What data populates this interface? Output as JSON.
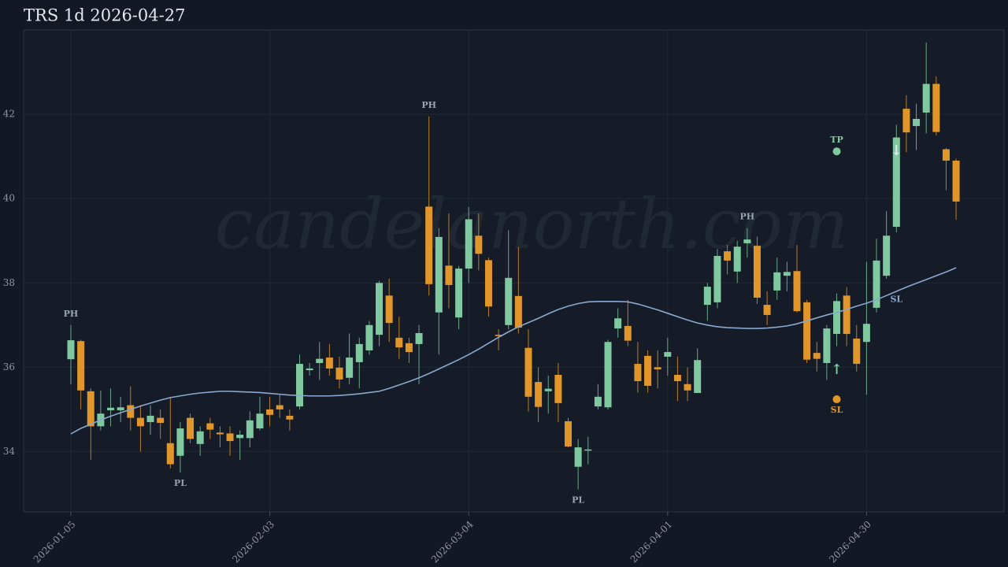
{
  "chart_data": {
    "type": "candlestick",
    "title": "TRS 1d 2026-04-27",
    "watermark": "candelanorth.com",
    "categories": [
      "2026-01-05",
      null,
      null,
      null,
      null,
      null,
      null,
      null,
      null,
      null,
      null,
      null,
      null,
      null,
      null,
      null,
      null,
      null,
      null,
      null,
      "2026-02-03",
      null,
      null,
      null,
      null,
      null,
      null,
      null,
      null,
      null,
      null,
      null,
      null,
      null,
      null,
      null,
      null,
      null,
      null,
      null,
      "2026-03-04",
      null,
      null,
      null,
      null,
      null,
      null,
      null,
      null,
      null,
      null,
      null,
      null,
      null,
      null,
      null,
      null,
      null,
      null,
      null,
      "2026-04-01",
      null,
      null,
      null,
      null,
      null,
      null,
      null,
      null,
      null,
      null,
      null,
      null,
      null,
      null,
      null,
      null,
      null,
      null,
      null,
      "2026-04-30",
      null,
      null,
      null,
      null,
      null,
      null,
      null,
      null,
      null
    ],
    "open": [
      36.19,
      36.62,
      35.43,
      34.6,
      34.98,
      34.98,
      35.1,
      34.8,
      34.7,
      34.8,
      34.2,
      33.9,
      34.8,
      34.18,
      34.67,
      34.45,
      34.43,
      34.32,
      34.32,
      34.55,
      35.0,
      35.1,
      34.85,
      35.07,
      35.93,
      36.1,
      36.23,
      35.99,
      35.75,
      36.12,
      36.4,
      36.77,
      37.7,
      36.7,
      36.57,
      36.55,
      39.81,
      37.3,
      38.41,
      37.18,
      38.34,
      39.12,
      38.54,
      36.77,
      37.0,
      37.69,
      36.46,
      35.65,
      35.43,
      35.82,
      34.72,
      33.64,
      34.05,
      35.07,
      35.05,
      36.92,
      36.98,
      36.08,
      36.27,
      36.0,
      36.25,
      35.82,
      35.6,
      35.39,
      37.48,
      37.54,
      38.75,
      38.27,
      38.94,
      38.88,
      37.48,
      37.82,
      38.17,
      38.28,
      37.54,
      36.34,
      36.1,
      36.79,
      37.7,
      36.68,
      36.6,
      37.41,
      38.17,
      39.33,
      42.13,
      41.72,
      42.04,
      42.72,
      41.17,
      40.9
    ],
    "high": [
      37.0,
      36.65,
      35.5,
      35.45,
      35.5,
      35.3,
      35.55,
      35.1,
      35.1,
      35.0,
      35.3,
      34.7,
      34.9,
      34.6,
      34.8,
      34.6,
      34.6,
      34.5,
      34.95,
      35.3,
      35.3,
      35.35,
      35.0,
      36.3,
      36.1,
      36.6,
      36.55,
      36.25,
      36.8,
      36.7,
      37.1,
      38.05,
      38.1,
      37.2,
      36.7,
      37.0,
      41.95,
      39.3,
      39.65,
      38.4,
      39.8,
      39.65,
      38.6,
      36.9,
      39.25,
      38.85,
      36.9,
      36.0,
      35.8,
      36.1,
      34.8,
      34.3,
      34.35,
      35.6,
      36.65,
      37.4,
      37.6,
      36.6,
      36.4,
      36.4,
      36.7,
      36.25,
      36.0,
      36.45,
      38.0,
      38.8,
      38.9,
      39.0,
      39.3,
      39.1,
      37.8,
      38.6,
      38.5,
      38.9,
      37.6,
      36.6,
      37.0,
      37.75,
      37.9,
      37.0,
      38.5,
      39.05,
      39.7,
      41.75,
      42.45,
      42.25,
      43.7,
      42.9,
      41.2,
      40.95
    ],
    "low": [
      35.6,
      35.0,
      33.8,
      34.5,
      34.6,
      34.7,
      34.5,
      34.0,
      34.4,
      34.3,
      33.6,
      33.5,
      34.2,
      33.9,
      34.3,
      34.1,
      33.9,
      33.8,
      34.1,
      34.5,
      34.6,
      34.8,
      34.5,
      35.0,
      35.8,
      35.7,
      35.8,
      35.5,
      35.6,
      35.5,
      36.3,
      36.5,
      36.6,
      36.2,
      36.1,
      35.6,
      37.7,
      36.3,
      37.4,
      36.9,
      38.0,
      38.3,
      37.2,
      36.4,
      36.9,
      36.8,
      34.95,
      34.7,
      34.9,
      34.7,
      34.1,
      33.1,
      33.7,
      35.0,
      35.0,
      36.7,
      36.5,
      35.4,
      35.4,
      35.5,
      35.8,
      35.2,
      35.2,
      35.4,
      37.1,
      37.4,
      38.2,
      38.0,
      38.6,
      37.5,
      37.0,
      37.6,
      37.8,
      37.3,
      36.1,
      35.9,
      35.7,
      36.5,
      36.5,
      35.9,
      35.35,
      37.3,
      38.1,
      39.2,
      41.1,
      41.15,
      41.55,
      41.5,
      40.2,
      39.5
    ],
    "close": [
      36.64,
      35.45,
      34.6,
      34.9,
      35.04,
      35.05,
      34.8,
      34.6,
      34.85,
      34.68,
      33.7,
      34.55,
      34.3,
      34.48,
      34.52,
      34.41,
      34.25,
      34.4,
      34.74,
      34.9,
      34.87,
      35.0,
      34.76,
      36.08,
      35.97,
      36.2,
      35.97,
      35.71,
      36.23,
      36.55,
      37.0,
      38.0,
      37.05,
      36.47,
      36.36,
      36.81,
      37.97,
      39.09,
      37.95,
      38.34,
      39.51,
      38.69,
      37.44,
      36.74,
      38.12,
      36.94,
      35.3,
      35.06,
      35.49,
      35.15,
      34.12,
      34.1,
      34.05,
      35.3,
      36.6,
      37.16,
      36.63,
      35.67,
      35.56,
      35.95,
      36.36,
      35.67,
      35.45,
      36.17,
      37.91,
      38.64,
      38.53,
      38.86,
      39.03,
      37.65,
      37.24,
      38.25,
      38.26,
      37.33,
      36.18,
      36.2,
      36.92,
      37.57,
      36.79,
      36.08,
      37.03,
      38.53,
      39.12,
      41.45,
      41.57,
      41.89,
      42.72,
      41.58,
      40.9,
      39.93
    ],
    "ma": [
      34.42,
      34.55,
      34.65,
      34.75,
      34.84,
      34.92,
      35.0,
      35.08,
      35.15,
      35.22,
      35.28,
      35.32,
      35.36,
      35.39,
      35.41,
      35.43,
      35.43,
      35.42,
      35.41,
      35.4,
      35.38,
      35.36,
      35.34,
      35.33,
      35.32,
      35.32,
      35.32,
      35.33,
      35.35,
      35.37,
      35.4,
      35.43,
      35.5,
      35.58,
      35.66,
      35.75,
      35.85,
      35.96,
      36.07,
      36.18,
      36.3,
      36.43,
      36.57,
      36.71,
      36.84,
      36.96,
      37.06,
      37.16,
      37.27,
      37.37,
      37.45,
      37.51,
      37.55,
      37.56,
      37.56,
      37.56,
      37.55,
      37.5,
      37.43,
      37.36,
      37.28,
      37.2,
      37.12,
      37.05,
      37.0,
      36.96,
      36.94,
      36.93,
      36.92,
      36.92,
      36.93,
      36.95,
      36.98,
      37.03,
      37.1,
      37.17,
      37.24,
      37.3,
      37.37,
      37.45,
      37.52,
      37.6,
      37.7,
      37.8,
      37.9,
      37.99,
      38.08,
      38.17,
      38.26,
      38.36
    ],
    "up_color": "#7fc8a0",
    "down_color": "#e0962a",
    "ma_color": "#8aa8d0",
    "ylim": [
      32.57,
      44
    ],
    "yticks": [
      34,
      36,
      38,
      40,
      42
    ],
    "grid": true,
    "pivots": [
      {
        "text": "PH",
        "x": 0,
        "y": 37.0,
        "kind": "high"
      },
      {
        "text": "PL",
        "x": 11,
        "y": 33.5,
        "kind": "low"
      },
      {
        "text": "PH",
        "x": 36,
        "y": 41.95,
        "kind": "high"
      },
      {
        "text": "PL",
        "x": 51,
        "y": 33.1,
        "kind": "low"
      },
      {
        "text": "PH",
        "x": 68,
        "y": 39.3,
        "kind": "high"
      }
    ],
    "levels": [
      {
        "text": "TP",
        "x": 77,
        "y": 41.12,
        "color": "#7fc8a0",
        "side": "above"
      },
      {
        "text": "SL",
        "x": 77,
        "y": 35.24,
        "color": "#e0962a",
        "side": "below"
      }
    ],
    "arrows": [
      {
        "text": "↑",
        "x": 77,
        "y": 35.93,
        "color": "#7fc8a0"
      },
      {
        "text": "↓",
        "x": 83,
        "y": 41.12,
        "color": "#dfe8ef"
      }
    ],
    "labels": [
      {
        "text": "SL",
        "x": 83,
        "y": 37.6,
        "color": "#8aa8d0"
      }
    ]
  }
}
